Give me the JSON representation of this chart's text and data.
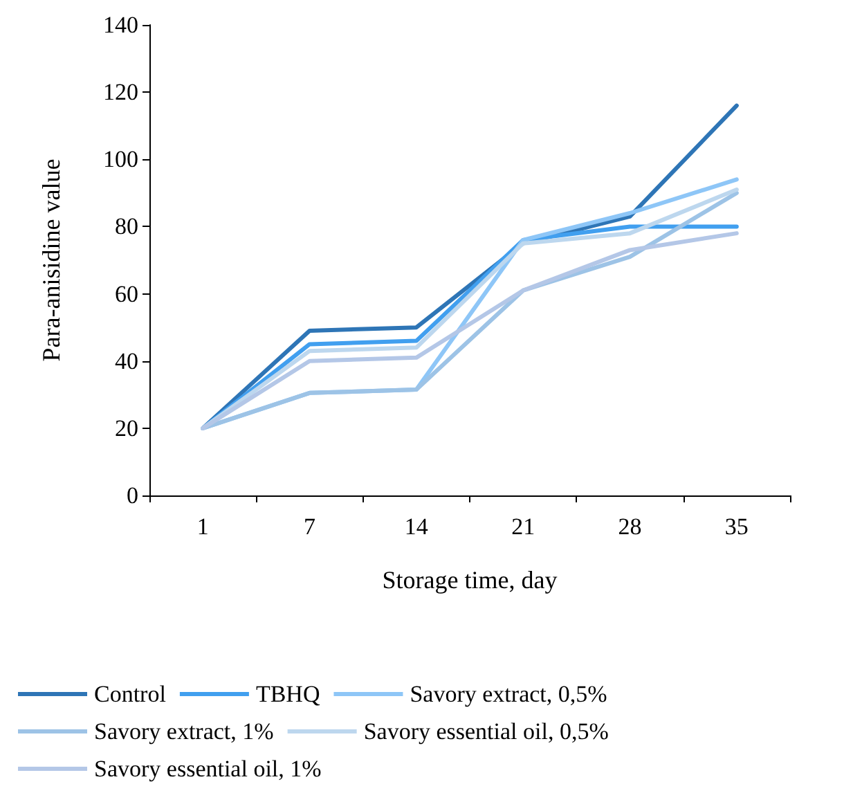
{
  "chart_data": {
    "type": "line",
    "xlabel": "Storage time, day",
    "ylabel": "Para-anisidine value",
    "categories": [
      "1",
      "7",
      "14",
      "21",
      "28",
      "35"
    ],
    "series": [
      {
        "name": "Control",
        "color": "#2e75b6",
        "values": [
          20,
          49,
          50,
          75,
          83,
          116
        ]
      },
      {
        "name": "TBHQ",
        "color": "#419fef",
        "values": [
          20,
          45,
          46,
          76,
          80,
          80
        ]
      },
      {
        "name": "Savory extract, 0,5%",
        "color": "#8ec6f7",
        "values": [
          20,
          30.5,
          31.5,
          76,
          84,
          94
        ]
      },
      {
        "name": "Savory extract, 1%",
        "color": "#9dc3e6",
        "values": [
          20,
          30.5,
          31.5,
          61,
          71,
          90
        ]
      },
      {
        "name": "Savory essential oil, 0,5%",
        "color": "#bdd7ee",
        "values": [
          20,
          43,
          44,
          75,
          78,
          91
        ]
      },
      {
        "name": "Savory essential oil, 1%",
        "color": "#b4c7e7",
        "values": [
          20,
          40,
          41,
          61,
          73,
          78
        ]
      }
    ],
    "ylim": [
      0,
      140
    ],
    "yticks": [
      0,
      20,
      40,
      60,
      80,
      100,
      120,
      140
    ],
    "grid": false,
    "legend": "bottom",
    "marker": "none",
    "line_style": "solid"
  }
}
